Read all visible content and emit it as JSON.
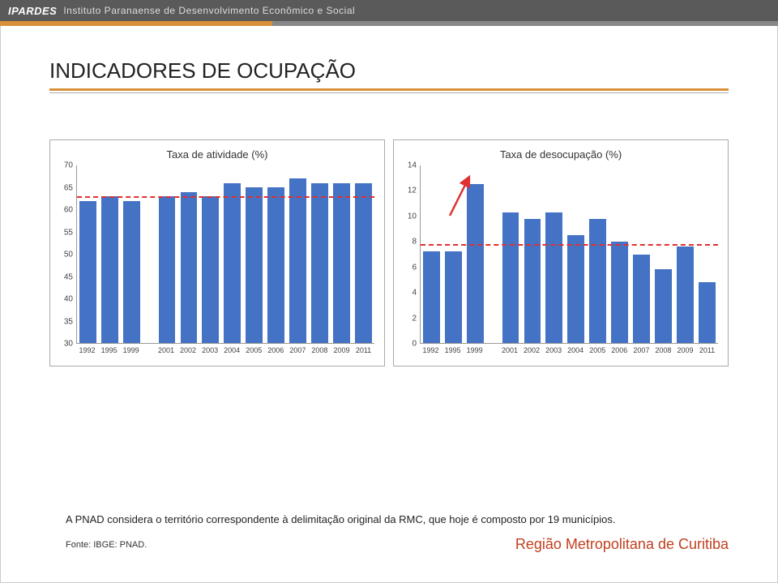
{
  "header": {
    "logo": "IPARDES",
    "subtitle": "Instituto Paranaense de Desenvolvimento Econômico e Social"
  },
  "title": "INDICADORES DE OCUPAÇÃO",
  "chart_left": {
    "title": "Taxa de atividade (%)",
    "type": "bar",
    "ylim": [
      30,
      70
    ],
    "ytick_step": 5,
    "categories": [
      "1992",
      "1995",
      "1999",
      "",
      "2001",
      "2002",
      "2003",
      "2004",
      "2005",
      "2006",
      "2007",
      "2008",
      "2009",
      "2011"
    ],
    "values": [
      62,
      63,
      62,
      null,
      63,
      64,
      63,
      66,
      65,
      65,
      67,
      66,
      66,
      66
    ],
    "bar_color": "#4472c4",
    "refline_value": 63,
    "refline_color": "#e03030",
    "background_color": "#ffffff",
    "border_color": "#999999"
  },
  "chart_right": {
    "title": "Taxa de desocupação (%)",
    "type": "bar",
    "ylim": [
      0,
      14
    ],
    "ytick_step": 2,
    "categories": [
      "1992",
      "1995",
      "1999",
      "",
      "2001",
      "2002",
      "2003",
      "2004",
      "2005",
      "2006",
      "2007",
      "2008",
      "2009",
      "2011"
    ],
    "values": [
      7.2,
      7.2,
      12.5,
      null,
      10.3,
      9.8,
      10.3,
      8.5,
      9.8,
      8,
      7,
      5.8,
      7.6,
      4.8
    ],
    "bar_color": "#4472c4",
    "refline_value": 7.8,
    "refline_color": "#e03030",
    "arrow_color": "#e03030",
    "background_color": "#ffffff",
    "border_color": "#999999"
  },
  "footnote": "A PNAD considera o território correspondente à delimitação original da RMC, que hoje é composto por 19 municípios.",
  "source": "Fonte: IBGE: PNAD.",
  "region": "Região Metropolitana de Curitiba",
  "colors": {
    "accent": "#d9903a",
    "region_text": "#c04020",
    "header_bg": "#5a5a5a"
  }
}
